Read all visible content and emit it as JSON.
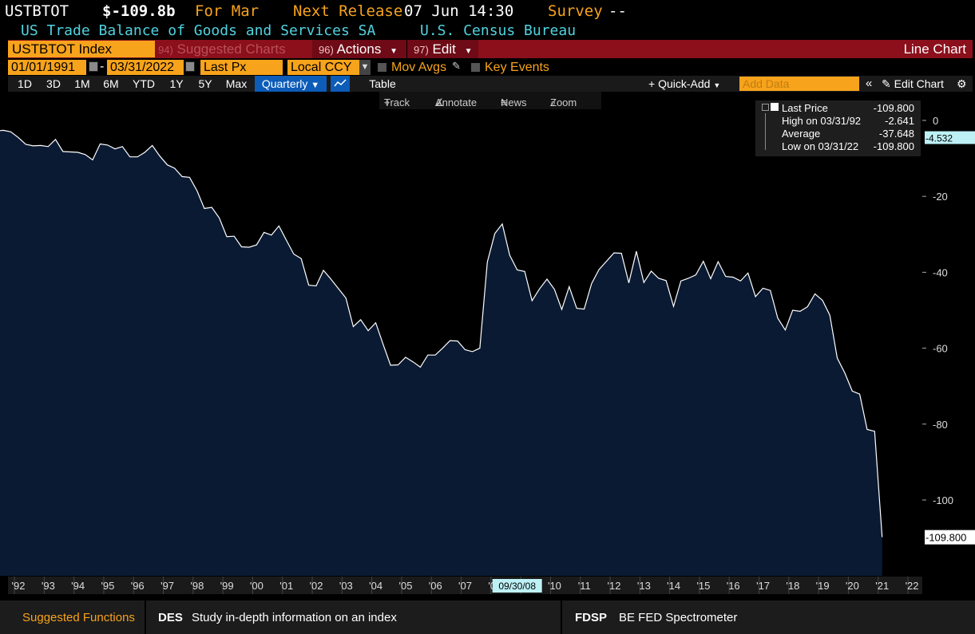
{
  "header": {
    "ticker": "USTBTOT",
    "last": "$-109.8b",
    "for_label": "For Mar",
    "next_release_label": "Next Release",
    "next_release_value": "07 Jun 14:30",
    "survey_label": "Survey",
    "survey_value": "--",
    "description": "US Trade Balance of Goods and Services SA",
    "source": "U.S. Census Bureau"
  },
  "toolbar": {
    "security": "USTBTOT Index",
    "suggested_num": "94)",
    "suggested_label": "Suggested Charts",
    "actions_num": "96)",
    "actions_label": "Actions",
    "edit_num": "97)",
    "edit_label": "Edit",
    "chart_type": "Line Chart"
  },
  "controls": {
    "start_date": "01/01/1991",
    "dash": "-",
    "end_date": "03/31/2022",
    "field": "Last Px",
    "currency": "Local CCY",
    "mov_avgs": "Mov Avgs",
    "key_events": "Key Events"
  },
  "periods": [
    "1D",
    "3D",
    "1M",
    "6M",
    "YTD",
    "1Y",
    "5Y",
    "Max"
  ],
  "frequency": "Quarterly",
  "table_label": "Table",
  "quick_add": "Quick-Add",
  "add_data_placeholder": "Add Data",
  "edit_chart": "Edit Chart",
  "tools": {
    "track": "Track",
    "annotate": "Annotate",
    "news": "News",
    "zoom": "Zoom"
  },
  "legend": {
    "last_label": "Last Price",
    "last_value": "-109.800",
    "high_label": "High on 03/31/92",
    "high_value": "-2.641",
    "avg_label": "Average",
    "avg_value": "-37.648",
    "low_label": "Low on 03/31/22",
    "low_value": "-109.800"
  },
  "crosshair_date": "09/30/08",
  "bottom": {
    "suggested_functions": "Suggested Functions",
    "f1_code": "DES",
    "f1_desc": "Study in-depth information on an index",
    "f2_code": "FDSP",
    "f2_desc": "BE FED Spectrometer"
  },
  "colors": {
    "accent_orange": "#f7a31b",
    "header_red": "#8c0f1c",
    "area_fill": "#0b1a33",
    "line": "#ffffff",
    "cyan": "#4fd3e0"
  },
  "chart_data": {
    "type": "area",
    "title": "",
    "xlabel": "",
    "ylabel": "",
    "x_start": "1991-03-31",
    "x_end": "2022-03-31",
    "frequency": "quarterly",
    "ylim": [
      -115,
      5
    ],
    "yticks": [
      0,
      -20,
      -40,
      -60,
      -80,
      -100
    ],
    "ytick_labels": [
      "0",
      "-20",
      "-40",
      "-60",
      "-80",
      "-100"
    ],
    "xtick_labels": [
      "'92",
      "'93",
      "'94",
      "'95",
      "'96",
      "'97",
      "'98",
      "'99",
      "'00",
      "'01",
      "'02",
      "'03",
      "'04",
      "'05",
      "'06",
      "'07",
      "'08",
      "'09",
      "'10",
      "'11",
      "'12",
      "'13",
      "'14",
      "'15",
      "'16",
      "'17",
      "'18",
      "'19",
      "'20",
      "'21",
      "'22"
    ],
    "reference_line": {
      "label": "-4.532",
      "value": -4.532
    },
    "last_value_label": "-109.800",
    "series": [
      {
        "values": [
          -2.8,
          -2.6,
          -3.0,
          -4.5,
          -6.3,
          -6.7,
          -6.6,
          -6.9,
          -5.0,
          -8.2,
          -8.3,
          -8.4,
          -9.0,
          -10.4,
          -6.2,
          -6.5,
          -7.5,
          -6.9,
          -9.6,
          -9.6,
          -8.4,
          -6.6,
          -9.4,
          -11.7,
          -12.6,
          -14.8,
          -15.0,
          -18.5,
          -23.2,
          -22.9,
          -25.7,
          -30.6,
          -30.5,
          -33.3,
          -33.4,
          -32.8,
          -29.5,
          -30.2,
          -27.8,
          -31.6,
          -35.2,
          -36.4,
          -43.4,
          -43.6,
          -39.5,
          -41.8,
          -44.3,
          -46.8,
          -54.3,
          -52.5,
          -55.4,
          -53.3,
          -59.0,
          -64.5,
          -64.4,
          -62.4,
          -63.6,
          -65.0,
          -61.8,
          -61.8,
          -60.0,
          -58.0,
          -58.1,
          -60.4,
          -60.9,
          -60.0,
          -37.3,
          -29.8,
          -27.3,
          -35.5,
          -39.4,
          -39.8,
          -47.5,
          -44.4,
          -41.8,
          -44.5,
          -49.8,
          -43.8,
          -49.5,
          -49.7,
          -43.0,
          -39.3,
          -37.1,
          -34.9,
          -35.0,
          -42.8,
          -34.5,
          -42.7,
          -39.7,
          -41.6,
          -42.2,
          -49.0,
          -42.3,
          -41.6,
          -40.7,
          -37.1,
          -41.7,
          -37.2,
          -41.1,
          -41.3,
          -42.3,
          -40.2,
          -46.4,
          -44.2,
          -44.8,
          -52.1,
          -55.2,
          -50.0,
          -50.3,
          -49.1,
          -45.7,
          -47.4,
          -51.3,
          -62.6,
          -66.5,
          -71.3,
          -72.1,
          -81.4,
          -81.9,
          -109.8
        ]
      }
    ]
  }
}
